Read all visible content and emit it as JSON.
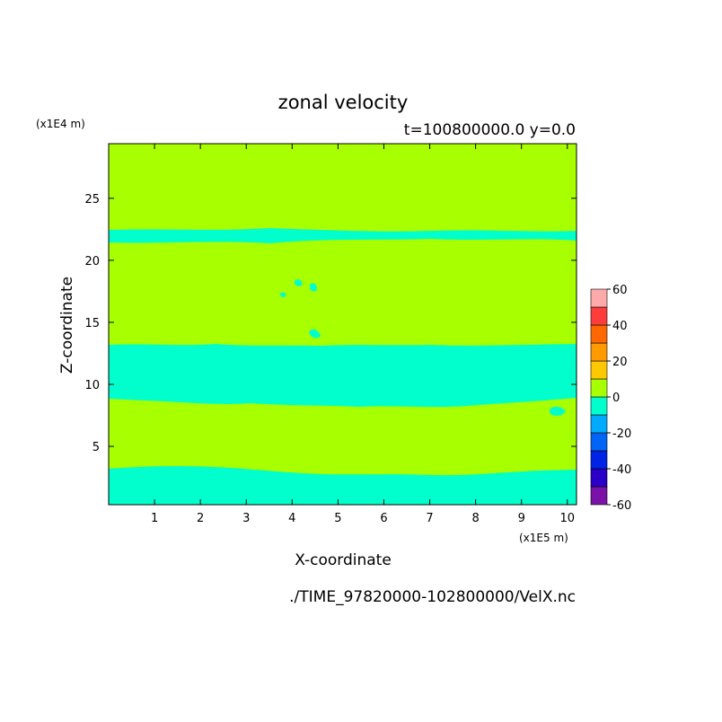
{
  "chart_data": {
    "type": "heatmap",
    "title": "zonal velocity",
    "subtitle": "t=100800000.0 y=0.0",
    "xlabel": "X-coordinate",
    "ylabel": "Z-coordinate",
    "x_multiplier": "(x1E5 m)",
    "y_multiplier": "(x1E4 m)",
    "xlim": [
      0,
      10.2
    ],
    "ylim": [
      0.3,
      29.4
    ],
    "xticks": [
      1,
      2,
      3,
      4,
      5,
      6,
      7,
      8,
      9,
      10
    ],
    "yticks": [
      5,
      10,
      15,
      20,
      25
    ],
    "filename": "./TIME_97820000-102800000/VelX.nc",
    "colorbar": {
      "levels": [
        -60,
        -50,
        -40,
        -30,
        -20,
        -10,
        0,
        10,
        20,
        30,
        40,
        50,
        60
      ],
      "tick_labels": [
        "60",
        "40",
        "20",
        "0",
        "-20",
        "-40",
        "-60"
      ],
      "colors": [
        "#7a12a8",
        "#2a00c8",
        "#0024e6",
        "#0064f5",
        "#00aaff",
        "#00ffcc",
        "#a8ff00",
        "#ffc800",
        "#ff9a00",
        "#ff6800",
        "#ff3c3c",
        "#ffaaaa"
      ]
    },
    "bands": [
      {
        "z_from": 0.3,
        "z_to": 2.9,
        "range": "-10 to 0"
      },
      {
        "z_from": 2.9,
        "z_to": 8.3,
        "range": "0 to 10"
      },
      {
        "z_from": 8.3,
        "z_to": 13.2,
        "range": "-10 to 0"
      },
      {
        "z_from": 13.2,
        "z_to": 21.5,
        "range": "0 to 10"
      },
      {
        "z_from": 21.5,
        "z_to": 29.4,
        "range": "alternating -10 to 0 / 0 to 10 layers"
      }
    ],
    "grid": false,
    "legend": "right"
  }
}
